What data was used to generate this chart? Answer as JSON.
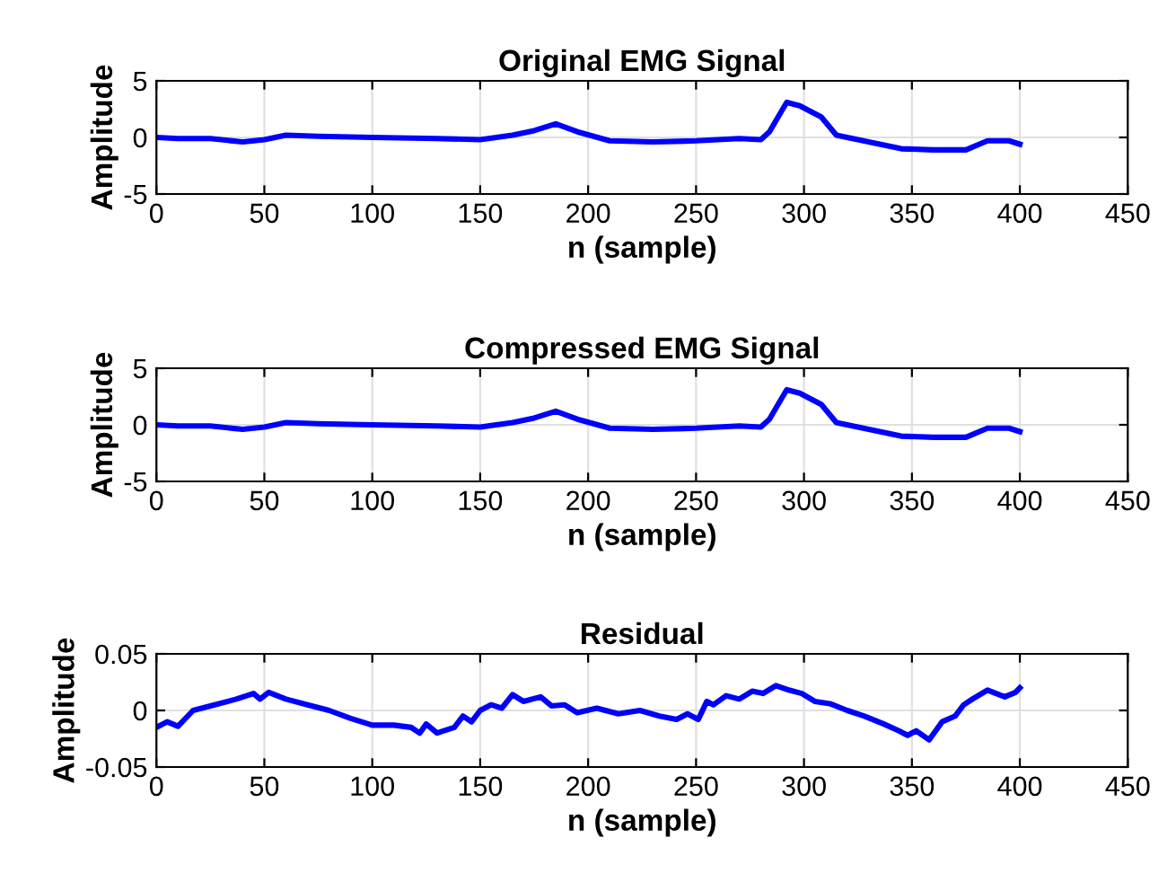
{
  "chart_data": [
    {
      "type": "line",
      "title": "Original EMG Signal",
      "xlabel": "n (sample)",
      "ylabel": "Amplitude",
      "grid": true,
      "xlim": [
        0,
        450
      ],
      "ylim": [
        -5,
        5
      ],
      "xticks": [
        0,
        50,
        100,
        150,
        200,
        250,
        300,
        350,
        400,
        450
      ],
      "yticks": [
        -5,
        0,
        5
      ],
      "x": [
        0,
        10,
        25,
        40,
        50,
        60,
        75,
        100,
        130,
        150,
        165,
        175,
        185,
        195,
        210,
        230,
        250,
        270,
        280,
        284,
        288,
        292,
        298,
        308,
        315,
        330,
        345,
        360,
        375,
        385,
        395,
        400
      ],
      "series": [
        {
          "color": "#0000ff",
          "values": [
            0,
            -0.1,
            -0.1,
            -0.4,
            -0.2,
            0.2,
            0.1,
            0,
            -0.1,
            -0.2,
            0.2,
            0.6,
            1.2,
            0.5,
            -0.3,
            -0.4,
            -0.3,
            -0.1,
            -0.2,
            0.5,
            1.8,
            3.1,
            2.8,
            1.8,
            0.2,
            -0.4,
            -1.0,
            -1.1,
            -1.1,
            -0.3,
            -0.3,
            -0.6
          ]
        }
      ]
    },
    {
      "type": "line",
      "title": "Compressed EMG Signal",
      "xlabel": "n (sample)",
      "ylabel": "Amplitude",
      "grid": true,
      "xlim": [
        0,
        450
      ],
      "ylim": [
        -5,
        5
      ],
      "xticks": [
        0,
        50,
        100,
        150,
        200,
        250,
        300,
        350,
        400,
        450
      ],
      "yticks": [
        -5,
        0,
        5
      ],
      "x": [
        0,
        10,
        25,
        40,
        50,
        60,
        75,
        100,
        130,
        150,
        165,
        175,
        185,
        195,
        210,
        230,
        250,
        270,
        280,
        284,
        288,
        292,
        298,
        308,
        315,
        330,
        345,
        360,
        375,
        385,
        395,
        400
      ],
      "series": [
        {
          "color": "#0000ff",
          "values": [
            0,
            -0.1,
            -0.1,
            -0.4,
            -0.2,
            0.2,
            0.1,
            0,
            -0.1,
            -0.2,
            0.2,
            0.6,
            1.2,
            0.5,
            -0.3,
            -0.4,
            -0.3,
            -0.1,
            -0.2,
            0.5,
            1.8,
            3.1,
            2.8,
            1.8,
            0.2,
            -0.4,
            -1.0,
            -1.1,
            -1.1,
            -0.3,
            -0.3,
            -0.6
          ]
        }
      ]
    },
    {
      "type": "line",
      "title": "Residual",
      "xlabel": "n (sample)",
      "ylabel": "Amplitude",
      "grid": true,
      "xlim": [
        0,
        450
      ],
      "ylim": [
        -0.05,
        0.05
      ],
      "xticks": [
        0,
        50,
        100,
        150,
        200,
        250,
        300,
        350,
        400,
        450
      ],
      "yticks": [
        -0.05,
        0,
        0.05
      ],
      "x": [
        0,
        5,
        10,
        17,
        25,
        37,
        45,
        48,
        52,
        60,
        70,
        80,
        90,
        100,
        110,
        118,
        122,
        125,
        130,
        138,
        142,
        146,
        150,
        155,
        160,
        165,
        170,
        178,
        183,
        189,
        195,
        204,
        214,
        224,
        233,
        241,
        246,
        251,
        255,
        258,
        264,
        270,
        276,
        281,
        287,
        293,
        299,
        305,
        312,
        320,
        328,
        337,
        344,
        348,
        352,
        358,
        364,
        370,
        374,
        378,
        385,
        393,
        398,
        400
      ],
      "series": [
        {
          "color": "#0000ff",
          "values": [
            -0.015,
            -0.01,
            -0.014,
            0.0,
            0.004,
            0.01,
            0.015,
            0.01,
            0.016,
            0.01,
            0.005,
            0.0,
            -0.007,
            -0.013,
            -0.013,
            -0.015,
            -0.02,
            -0.012,
            -0.02,
            -0.015,
            -0.005,
            -0.01,
            0.0,
            0.005,
            0.002,
            0.014,
            0.008,
            0.012,
            0.004,
            0.005,
            -0.002,
            0.002,
            -0.003,
            0.0,
            -0.005,
            -0.008,
            -0.003,
            -0.008,
            0.008,
            0.005,
            0.013,
            0.01,
            0.017,
            0.015,
            0.022,
            0.018,
            0.015,
            0.008,
            0.006,
            0.0,
            -0.005,
            -0.012,
            -0.018,
            -0.022,
            -0.018,
            -0.026,
            -0.01,
            -0.005,
            0.005,
            0.01,
            0.018,
            0.012,
            0.016,
            0.02
          ]
        }
      ]
    }
  ]
}
